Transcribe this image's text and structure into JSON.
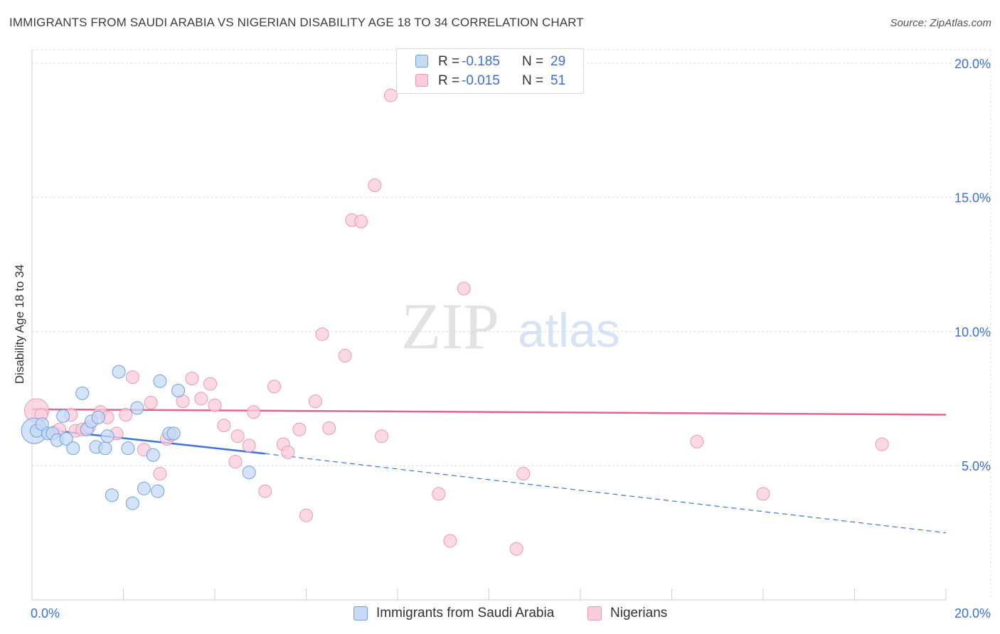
{
  "title": "IMMIGRANTS FROM SAUDI ARABIA VS NIGERIAN DISABILITY AGE 18 TO 34 CORRELATION CHART",
  "source": "Source: ZipAtlas.com",
  "watermark": {
    "zip": "ZIP",
    "atlas": "atlas"
  },
  "legend": {
    "series1": {
      "r_label": "R =",
      "r_value": "-0.185",
      "n_label": "N =",
      "n_value": "29"
    },
    "series2": {
      "r_label": "R =",
      "r_value": "-0.015",
      "n_label": "N =",
      "n_value": "51"
    }
  },
  "colors": {
    "blue_fill": "#c6d9f5",
    "blue_stroke": "#6e9fe0",
    "blue_line": "#3c74d6",
    "pink_fill": "#f9ccdb",
    "pink_stroke": "#ee97b4",
    "pink_line": "#e0648f",
    "axis_text": "#3b6fd4",
    "grid": "#dcdcdc"
  },
  "chart_data": {
    "type": "scatter",
    "title": "IMMIGRANTS FROM SAUDI ARABIA VS NIGERIAN DISABILITY AGE 18 TO 34 CORRELATION CHART",
    "xlabel": "",
    "ylabel": "Disability Age 18 to 34",
    "xlim": [
      0,
      20
    ],
    "ylim": [
      0,
      20.5
    ],
    "x_tick_labels": [
      "0.0%",
      "20.0%"
    ],
    "y_ticks": [
      5,
      10,
      15,
      20
    ],
    "y_tick_labels": [
      "5.0%",
      "10.0%",
      "15.0%",
      "20.0%"
    ],
    "grid": true,
    "legend_entries": [
      "Immigrants from Saudi Arabia",
      "Nigerians"
    ],
    "series": [
      {
        "name": "Immigrants from Saudi Arabia",
        "color": "blue",
        "r": -0.185,
        "n": 29,
        "trend": {
          "x0": 0,
          "y0": 6.4,
          "x1": 5.1,
          "y1": 5.45,
          "dash_to_x": 20,
          "dash_to_y": 2.5
        },
        "points": [
          [
            0.05,
            6.3,
            18
          ],
          [
            0.1,
            6.3,
            9
          ],
          [
            0.22,
            6.55,
            9
          ],
          [
            0.35,
            6.2,
            9
          ],
          [
            0.45,
            6.2,
            9
          ],
          [
            0.55,
            5.95,
            9
          ],
          [
            0.68,
            6.85,
            9
          ],
          [
            0.75,
            6.0,
            9
          ],
          [
            0.9,
            5.65,
            9
          ],
          [
            1.1,
            7.7,
            9
          ],
          [
            1.2,
            6.35,
            9
          ],
          [
            1.3,
            6.65,
            9
          ],
          [
            1.4,
            5.7,
            9
          ],
          [
            1.45,
            6.8,
            9
          ],
          [
            1.6,
            5.65,
            9
          ],
          [
            1.65,
            6.1,
            9
          ],
          [
            1.75,
            3.9,
            9
          ],
          [
            1.9,
            8.5,
            9
          ],
          [
            2.1,
            5.65,
            9
          ],
          [
            2.2,
            3.6,
            9
          ],
          [
            2.3,
            7.15,
            9
          ],
          [
            2.45,
            4.15,
            9
          ],
          [
            2.65,
            5.4,
            9
          ],
          [
            2.75,
            4.05,
            9
          ],
          [
            2.8,
            8.15,
            9
          ],
          [
            3.0,
            6.2,
            9
          ],
          [
            3.1,
            6.2,
            9
          ],
          [
            3.2,
            7.8,
            9
          ],
          [
            4.75,
            4.75,
            9
          ]
        ]
      },
      {
        "name": "Nigerians",
        "color": "pink",
        "r": -0.015,
        "n": 51,
        "trend": {
          "x0": 0,
          "y0": 7.1,
          "x1": 20,
          "y1": 6.9
        },
        "points": [
          [
            0.1,
            7.05,
            17
          ],
          [
            0.2,
            6.9,
            9
          ],
          [
            0.5,
            6.25,
            9
          ],
          [
            0.6,
            6.35,
            9
          ],
          [
            0.85,
            6.9,
            9
          ],
          [
            0.95,
            6.3,
            9
          ],
          [
            1.1,
            6.35,
            9
          ],
          [
            1.25,
            6.45,
            9
          ],
          [
            1.5,
            7.0,
            9
          ],
          [
            1.65,
            6.8,
            9
          ],
          [
            1.85,
            6.2,
            9
          ],
          [
            2.05,
            6.9,
            9
          ],
          [
            2.2,
            8.3,
            9
          ],
          [
            2.45,
            5.6,
            9
          ],
          [
            2.6,
            7.35,
            9
          ],
          [
            2.8,
            4.7,
            9
          ],
          [
            2.95,
            6.0,
            9
          ],
          [
            3.05,
            6.15,
            9
          ],
          [
            3.3,
            7.4,
            9
          ],
          [
            3.5,
            8.25,
            9
          ],
          [
            3.7,
            7.5,
            9
          ],
          [
            3.9,
            8.05,
            9
          ],
          [
            4.0,
            7.25,
            9
          ],
          [
            4.2,
            6.5,
            9
          ],
          [
            4.45,
            5.15,
            9
          ],
          [
            4.5,
            6.1,
            9
          ],
          [
            4.75,
            5.75,
            9
          ],
          [
            4.85,
            7.0,
            9
          ],
          [
            5.1,
            4.05,
            9
          ],
          [
            5.3,
            7.95,
            9
          ],
          [
            5.5,
            5.8,
            9
          ],
          [
            5.6,
            5.5,
            9
          ],
          [
            5.85,
            6.35,
            9
          ],
          [
            6.0,
            3.15,
            9
          ],
          [
            6.2,
            7.4,
            9
          ],
          [
            6.35,
            9.9,
            9
          ],
          [
            6.5,
            6.4,
            9
          ],
          [
            6.85,
            9.1,
            9
          ],
          [
            7.0,
            14.15,
            9
          ],
          [
            7.2,
            14.1,
            9
          ],
          [
            7.5,
            15.45,
            9
          ],
          [
            7.65,
            6.1,
            9
          ],
          [
            7.85,
            18.8,
            9
          ],
          [
            8.9,
            3.95,
            9
          ],
          [
            9.15,
            2.2,
            9
          ],
          [
            9.45,
            11.6,
            9
          ],
          [
            10.6,
            1.9,
            9
          ],
          [
            10.75,
            4.7,
            9
          ],
          [
            14.55,
            5.9,
            9
          ],
          [
            16.0,
            3.95,
            9
          ],
          [
            18.6,
            5.8,
            9
          ]
        ]
      }
    ]
  }
}
